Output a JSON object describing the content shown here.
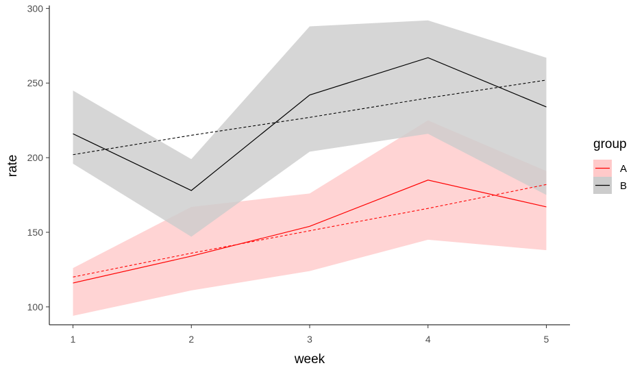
{
  "chart_data": {
    "type": "line",
    "xlabel": "week",
    "ylabel": "rate",
    "x": [
      1,
      2,
      3,
      4,
      5
    ],
    "xlim": [
      0.8,
      5.2
    ],
    "ylim": [
      88,
      302
    ],
    "xticks": [
      "1",
      "2",
      "3",
      "4",
      "5"
    ],
    "yticks": [
      "100",
      "150",
      "200",
      "250",
      "300"
    ],
    "grid": false,
    "legend": {
      "title": "group",
      "position": "right"
    },
    "series": [
      {
        "name": "A",
        "color": "#ff0000",
        "ribbon_color": "#ffc9c9",
        "values": [
          116,
          134,
          154,
          185,
          167
        ],
        "lower": [
          94,
          111,
          124,
          145,
          138
        ],
        "upper": [
          126,
          167,
          176,
          225,
          191
        ],
        "trend": [
          120,
          136,
          151,
          166,
          182
        ]
      },
      {
        "name": "B",
        "color": "#000000",
        "ribbon_color": "#cccccc",
        "values": [
          216,
          178,
          242,
          267,
          234
        ],
        "lower": [
          196,
          147,
          204,
          216,
          175
        ],
        "upper": [
          245,
          199,
          288,
          292,
          267
        ],
        "trend": [
          202,
          215,
          227,
          240,
          252
        ]
      }
    ]
  }
}
